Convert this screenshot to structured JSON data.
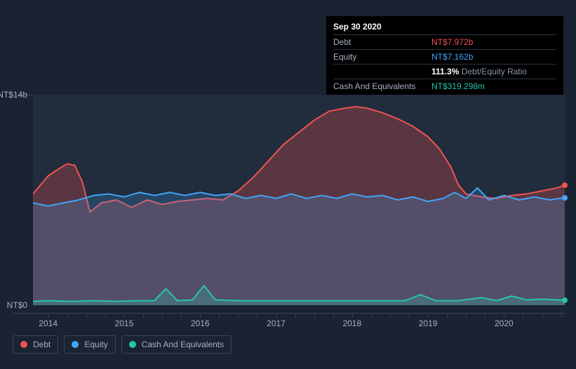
{
  "tooltip": {
    "date": "Sep 30 2020",
    "rows": [
      {
        "label": "Debt",
        "value": "NT$7.972b",
        "color": "#ef5350"
      },
      {
        "label": "Equity",
        "value": "NT$7.162b",
        "color": "#42a5f5"
      },
      {
        "label": "",
        "value_bold": "111.3%",
        "value_suffix": " Debt/Equity Ratio",
        "color": "#ffffff"
      },
      {
        "label": "Cash And Equivalents",
        "value": "NT$319.298m",
        "color": "#26c6a8"
      }
    ]
  },
  "chart": {
    "type": "area",
    "background_color": "#1a2332",
    "plot_background_color": "#212c3d",
    "grid_color": "#3a4556",
    "text_color": "#a8b2c0",
    "ylim": [
      0,
      14
    ],
    "y_ticks": [
      {
        "v": 0,
        "label": "NT$0"
      },
      {
        "v": 14,
        "label": "NT$14b"
      }
    ],
    "x_ticks": [
      {
        "t": 2014,
        "label": "2014"
      },
      {
        "t": 2015,
        "label": "2015"
      },
      {
        "t": 2016,
        "label": "2016"
      },
      {
        "t": 2017,
        "label": "2017"
      },
      {
        "t": 2018,
        "label": "2018"
      },
      {
        "t": 2019,
        "label": "2019"
      },
      {
        "t": 2020,
        "label": "2020"
      }
    ],
    "xlim": [
      2013.8,
      2020.8
    ],
    "series": [
      {
        "name": "Debt",
        "stroke": "#ef5350",
        "fill": "rgba(239,83,80,0.28)",
        "line_width": 2,
        "end_dot": true,
        "points": [
          [
            2013.8,
            7.4
          ],
          [
            2014.0,
            8.6
          ],
          [
            2014.15,
            9.1
          ],
          [
            2014.25,
            9.4
          ],
          [
            2014.35,
            9.3
          ],
          [
            2014.45,
            8.2
          ],
          [
            2014.55,
            6.2
          ],
          [
            2014.7,
            6.8
          ],
          [
            2014.9,
            7.0
          ],
          [
            2015.1,
            6.5
          ],
          [
            2015.3,
            7.0
          ],
          [
            2015.5,
            6.7
          ],
          [
            2015.7,
            6.9
          ],
          [
            2015.9,
            7.0
          ],
          [
            2016.1,
            7.1
          ],
          [
            2016.3,
            7.0
          ],
          [
            2016.5,
            7.6
          ],
          [
            2016.7,
            8.5
          ],
          [
            2016.9,
            9.6
          ],
          [
            2017.1,
            10.7
          ],
          [
            2017.3,
            11.5
          ],
          [
            2017.5,
            12.3
          ],
          [
            2017.7,
            12.9
          ],
          [
            2017.9,
            13.1
          ],
          [
            2018.05,
            13.2
          ],
          [
            2018.2,
            13.1
          ],
          [
            2018.4,
            12.8
          ],
          [
            2018.6,
            12.4
          ],
          [
            2018.8,
            11.9
          ],
          [
            2019.0,
            11.2
          ],
          [
            2019.15,
            10.4
          ],
          [
            2019.3,
            9.2
          ],
          [
            2019.4,
            8.0
          ],
          [
            2019.5,
            7.4
          ],
          [
            2019.7,
            7.2
          ],
          [
            2019.9,
            7.1
          ],
          [
            2020.1,
            7.3
          ],
          [
            2020.3,
            7.4
          ],
          [
            2020.5,
            7.6
          ],
          [
            2020.7,
            7.8
          ],
          [
            2020.8,
            7.97
          ]
        ]
      },
      {
        "name": "Equity",
        "stroke": "#42a5f5",
        "fill": "rgba(66,165,245,0.22)",
        "line_width": 2,
        "end_dot": true,
        "points": [
          [
            2013.8,
            6.8
          ],
          [
            2014.0,
            6.6
          ],
          [
            2014.2,
            6.8
          ],
          [
            2014.4,
            7.0
          ],
          [
            2014.6,
            7.3
          ],
          [
            2014.8,
            7.4
          ],
          [
            2015.0,
            7.2
          ],
          [
            2015.2,
            7.5
          ],
          [
            2015.4,
            7.3
          ],
          [
            2015.6,
            7.5
          ],
          [
            2015.8,
            7.3
          ],
          [
            2016.0,
            7.5
          ],
          [
            2016.2,
            7.3
          ],
          [
            2016.4,
            7.4
          ],
          [
            2016.6,
            7.1
          ],
          [
            2016.8,
            7.3
          ],
          [
            2017.0,
            7.1
          ],
          [
            2017.2,
            7.4
          ],
          [
            2017.4,
            7.1
          ],
          [
            2017.6,
            7.3
          ],
          [
            2017.8,
            7.1
          ],
          [
            2018.0,
            7.4
          ],
          [
            2018.2,
            7.2
          ],
          [
            2018.4,
            7.3
          ],
          [
            2018.6,
            7.0
          ],
          [
            2018.8,
            7.2
          ],
          [
            2019.0,
            6.9
          ],
          [
            2019.2,
            7.1
          ],
          [
            2019.35,
            7.5
          ],
          [
            2019.5,
            7.1
          ],
          [
            2019.65,
            7.8
          ],
          [
            2019.8,
            7.0
          ],
          [
            2020.0,
            7.3
          ],
          [
            2020.2,
            7.0
          ],
          [
            2020.4,
            7.2
          ],
          [
            2020.6,
            7.0
          ],
          [
            2020.8,
            7.16
          ]
        ]
      },
      {
        "name": "Cash And Equivalents",
        "stroke": "#26c6a8",
        "fill": "rgba(38,198,168,0.25)",
        "line_width": 2,
        "end_dot": true,
        "points": [
          [
            2013.8,
            0.25
          ],
          [
            2014.0,
            0.3
          ],
          [
            2014.3,
            0.25
          ],
          [
            2014.6,
            0.3
          ],
          [
            2014.9,
            0.25
          ],
          [
            2015.2,
            0.3
          ],
          [
            2015.4,
            0.3
          ],
          [
            2015.55,
            1.1
          ],
          [
            2015.7,
            0.3
          ],
          [
            2015.9,
            0.35
          ],
          [
            2016.05,
            1.3
          ],
          [
            2016.2,
            0.35
          ],
          [
            2016.5,
            0.3
          ],
          [
            2016.8,
            0.3
          ],
          [
            2017.2,
            0.3
          ],
          [
            2017.6,
            0.3
          ],
          [
            2018.0,
            0.3
          ],
          [
            2018.4,
            0.3
          ],
          [
            2018.7,
            0.3
          ],
          [
            2018.9,
            0.7
          ],
          [
            2019.1,
            0.3
          ],
          [
            2019.4,
            0.3
          ],
          [
            2019.7,
            0.5
          ],
          [
            2019.9,
            0.3
          ],
          [
            2020.1,
            0.6
          ],
          [
            2020.3,
            0.35
          ],
          [
            2020.5,
            0.4
          ],
          [
            2020.7,
            0.35
          ],
          [
            2020.8,
            0.32
          ]
        ]
      }
    ],
    "legend": [
      {
        "label": "Debt",
        "color": "#ef5350"
      },
      {
        "label": "Equity",
        "color": "#42a5f5"
      },
      {
        "label": "Cash And Equivalents",
        "color": "#26c6a8"
      }
    ]
  }
}
